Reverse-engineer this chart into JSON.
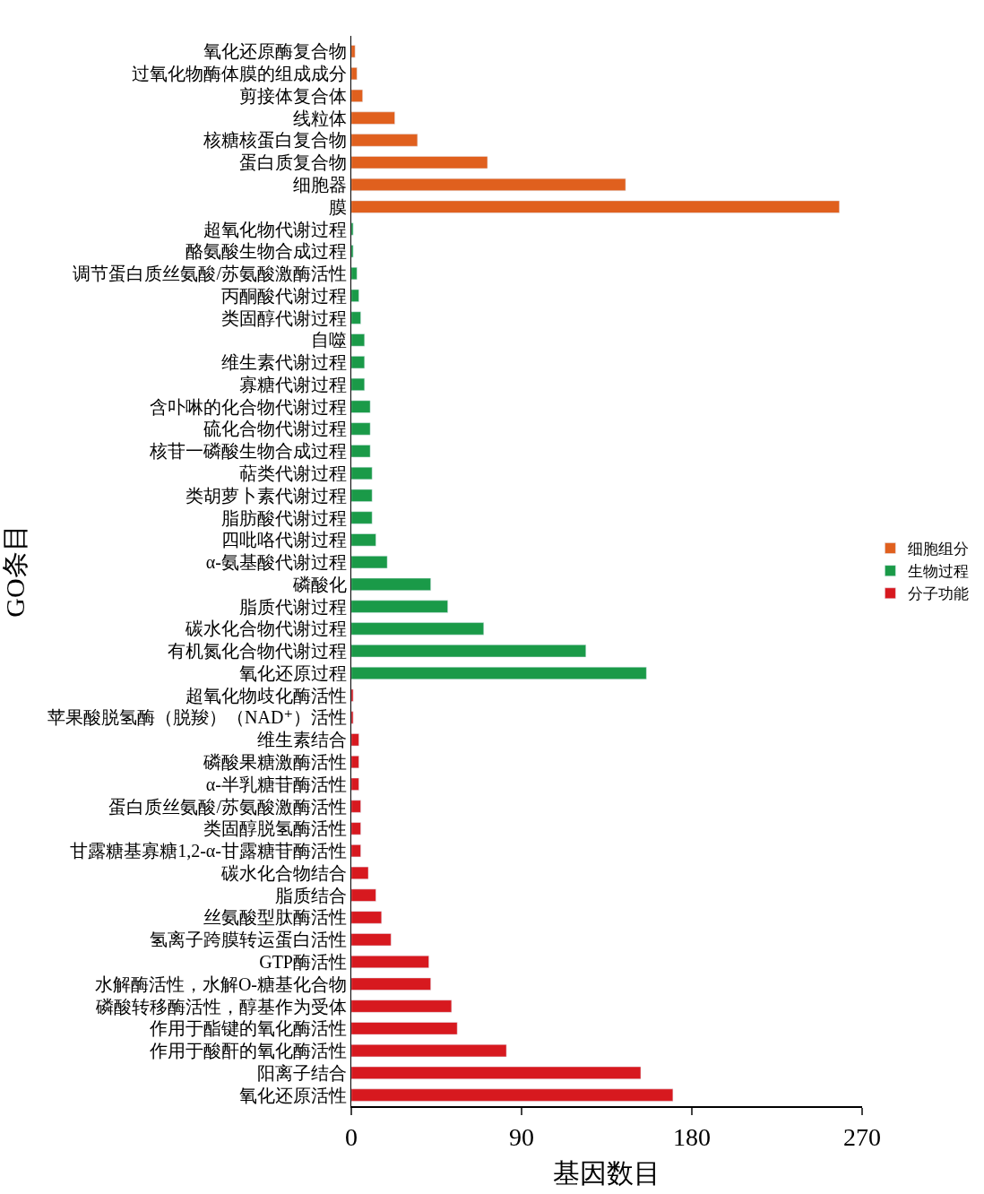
{
  "chart_data": {
    "type": "bar",
    "orientation": "horizontal",
    "xlabel": "基因数目",
    "ylabel": "GO条目",
    "categories": [
      "氧化还原酶复合物",
      "过氧化物酶体膜的组成成分",
      "剪接体复合体",
      "线粒体",
      "核糖核蛋白复合物",
      "蛋白质复合物",
      "细胞器",
      "膜",
      "超氧化物代谢过程",
      "酪氨酸生物合成过程",
      "调节蛋白质丝氨酸/苏氨酸激酶活性",
      "丙酮酸代谢过程",
      "类固醇代谢过程",
      "自噬",
      "维生素代谢过程",
      "寡糖代谢过程",
      "含卟啉的化合物代谢过程",
      "硫化合物代谢过程",
      "核苷一磷酸生物合成过程",
      "萜类代谢过程",
      "类胡萝卜素代谢过程",
      "脂肪酸代谢过程",
      "四吡咯代谢过程",
      "α-氨基酸代谢过程",
      "磷酸化",
      "脂质代谢过程",
      "碳水化合物代谢过程",
      "有机氮化合物代谢过程",
      "氧化还原过程",
      "超氧化物歧化酶活性",
      "苹果酸脱氢酶（脱羧）（NAD⁺）活性",
      "维生素结合",
      "磷酸果糖激酶活性",
      "α-半乳糖苷酶活性",
      "蛋白质丝氨酸/苏氨酸激酶活性",
      "类固醇脱氢酶活性",
      "甘露糖基寡糖1,2-α-甘露糖苷酶活性",
      "碳水化合物结合",
      "脂质结合",
      "丝氨酸型肽酶活性",
      "氢离子跨膜转运蛋白活性",
      "GTP酶活性",
      "水解酶活性，水解O-糖基化合物",
      "磷酸转移酶活性，醇基作为受体",
      "作用于酯键的氧化酶活性",
      "作用于酸酐的氧化酶活性",
      "阳离子结合",
      "氧化还原活性"
    ],
    "series": [
      {
        "name": "细胞组分",
        "color": "#e0601e",
        "values": [
          2,
          3,
          6,
          23,
          35,
          72,
          145,
          258,
          null,
          null,
          null,
          null,
          null,
          null,
          null,
          null,
          null,
          null,
          null,
          null,
          null,
          null,
          null,
          null,
          null,
          null,
          null,
          null,
          null,
          null,
          null,
          null,
          null,
          null,
          null,
          null,
          null,
          null,
          null,
          null,
          null,
          null,
          null,
          null,
          null,
          null,
          null,
          null
        ]
      },
      {
        "name": "生物过程",
        "color": "#1a9a48",
        "values": [
          null,
          null,
          null,
          null,
          null,
          null,
          null,
          null,
          1,
          1,
          3,
          4,
          5,
          7,
          7,
          7,
          10,
          10,
          10,
          11,
          11,
          11,
          13,
          19,
          42,
          51,
          70,
          124,
          156,
          null,
          null,
          null,
          null,
          null,
          null,
          null,
          null,
          null,
          null,
          null,
          null,
          null,
          null,
          null,
          null,
          null,
          null,
          null
        ]
      },
      {
        "name": "分子功能",
        "color": "#d7191f",
        "values": [
          null,
          null,
          null,
          null,
          null,
          null,
          null,
          null,
          null,
          null,
          null,
          null,
          null,
          null,
          null,
          null,
          null,
          null,
          null,
          null,
          null,
          null,
          null,
          null,
          null,
          null,
          null,
          null,
          null,
          1,
          1,
          4,
          4,
          4,
          5,
          5,
          5,
          9,
          13,
          16,
          21,
          41,
          42,
          53,
          56,
          82,
          153,
          170
        ]
      }
    ],
    "xlim": [
      0,
      270
    ],
    "xticks": [
      0,
      90,
      180,
      270
    ],
    "legend": "right"
  }
}
